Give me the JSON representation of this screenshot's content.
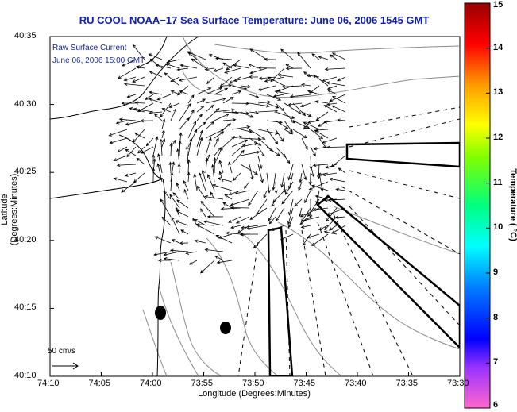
{
  "title": "RU COOL  NOAA−17  Sea Surface Temperature:  June 06, 2006 1545 GMT",
  "legend": {
    "line1": "Raw Surface Current",
    "line2": "June 06, 2006 15:00 GMT",
    "scale_label": "50 cm/s"
  },
  "axes": {
    "xlabel": "Longitude (Degrees:Minutes)",
    "ylabel": "Latitude (Degrees:Minutes)",
    "xticks": [
      "74:10",
      "74:05",
      "74:00",
      "73:55",
      "73:50",
      "73:45",
      "73:40",
      "73:35",
      "73:30"
    ],
    "yticks": [
      "40:35",
      "40:30",
      "40:25",
      "40:20",
      "40:15",
      "40:10"
    ]
  },
  "colorbar": {
    "label": "Temperature ( °C)",
    "ticks": [
      "15",
      "14",
      "13",
      "12",
      "11",
      "10",
      "9",
      "8",
      "7",
      "6"
    ]
  }
}
